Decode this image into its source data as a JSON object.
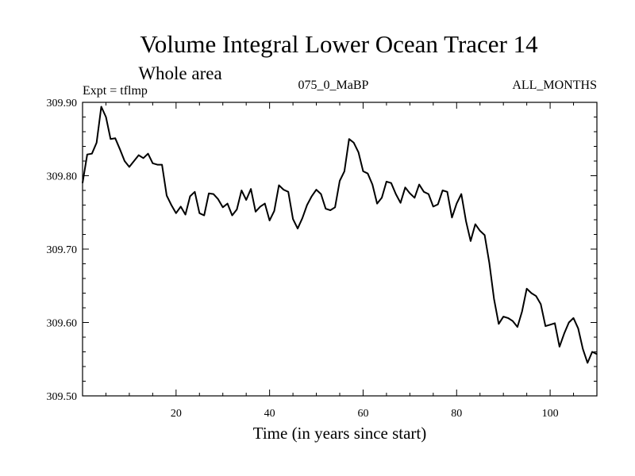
{
  "chart_data": {
    "type": "line",
    "title": "Volume Integral Lower Ocean Tracer 14",
    "subtitle": "Whole area",
    "experiment_label": "Expt = tflmp",
    "period_label": "075_0_MaBP",
    "months_label": "ALL_MONTHS",
    "xlabel": "Time (in years since start)",
    "ylabel": "",
    "xlim": [
      0,
      110
    ],
    "ylim": [
      309.5,
      309.9
    ],
    "x_ticks": [
      20,
      40,
      60,
      80,
      100
    ],
    "x_tick_labels": [
      "20",
      "40",
      "60",
      "80",
      "100"
    ],
    "y_ticks": [
      309.5,
      309.6,
      309.7,
      309.8,
      309.9
    ],
    "y_tick_labels": [
      "309.50",
      "309.60",
      "309.70",
      "309.80",
      "309.90"
    ],
    "grid": false,
    "series": [
      {
        "name": "Tracer 14",
        "color": "#000000",
        "x": [
          0,
          1,
          2,
          3,
          4,
          5,
          6,
          7,
          8,
          9,
          10,
          11,
          12,
          13,
          14,
          15,
          16,
          17,
          18,
          19,
          20,
          21,
          22,
          23,
          24,
          25,
          26,
          27,
          28,
          29,
          30,
          31,
          32,
          33,
          34,
          35,
          36,
          37,
          38,
          39,
          40,
          41,
          42,
          43,
          44,
          45,
          46,
          47,
          48,
          49,
          50,
          51,
          52,
          53,
          54,
          55,
          56,
          57,
          58,
          59,
          60,
          61,
          62,
          63,
          64,
          65,
          66,
          67,
          68,
          69,
          70,
          71,
          72,
          73,
          74,
          75,
          76,
          77,
          78,
          79,
          80,
          81,
          82,
          83,
          84,
          85,
          86,
          87,
          88,
          89,
          90,
          91,
          92,
          93,
          94,
          95,
          96,
          97,
          98,
          99,
          100,
          101,
          102,
          103,
          104,
          105,
          106,
          107,
          108,
          109,
          110
        ],
        "values": [
          309.79,
          309.829,
          309.83,
          309.845,
          309.894,
          309.88,
          309.85,
          309.851,
          309.836,
          309.82,
          309.812,
          309.82,
          309.828,
          309.824,
          309.83,
          309.817,
          309.815,
          309.815,
          309.773,
          309.76,
          309.749,
          309.758,
          309.747,
          309.772,
          309.778,
          309.749,
          309.746,
          309.776,
          309.775,
          309.768,
          309.757,
          309.762,
          309.746,
          309.754,
          309.78,
          309.767,
          309.782,
          309.751,
          309.758,
          309.762,
          309.739,
          309.752,
          309.787,
          309.781,
          309.778,
          309.741,
          309.728,
          309.742,
          309.76,
          309.772,
          309.781,
          309.775,
          309.755,
          309.753,
          309.757,
          309.793,
          309.806,
          309.85,
          309.845,
          309.832,
          309.806,
          309.803,
          309.788,
          309.762,
          309.77,
          309.792,
          309.79,
          309.775,
          309.763,
          309.784,
          309.776,
          309.77,
          309.788,
          309.778,
          309.775,
          309.758,
          309.761,
          309.78,
          309.778,
          309.743,
          309.762,
          309.775,
          309.738,
          309.711,
          309.734,
          309.725,
          309.719,
          309.681,
          309.632,
          309.598,
          309.608,
          309.606,
          309.602,
          309.594,
          309.615,
          309.646,
          309.64,
          309.636,
          309.625,
          309.595,
          309.597,
          309.599,
          309.567,
          309.585,
          309.6,
          309.606,
          309.592,
          309.564,
          309.545,
          309.56,
          309.557
        ]
      }
    ]
  }
}
